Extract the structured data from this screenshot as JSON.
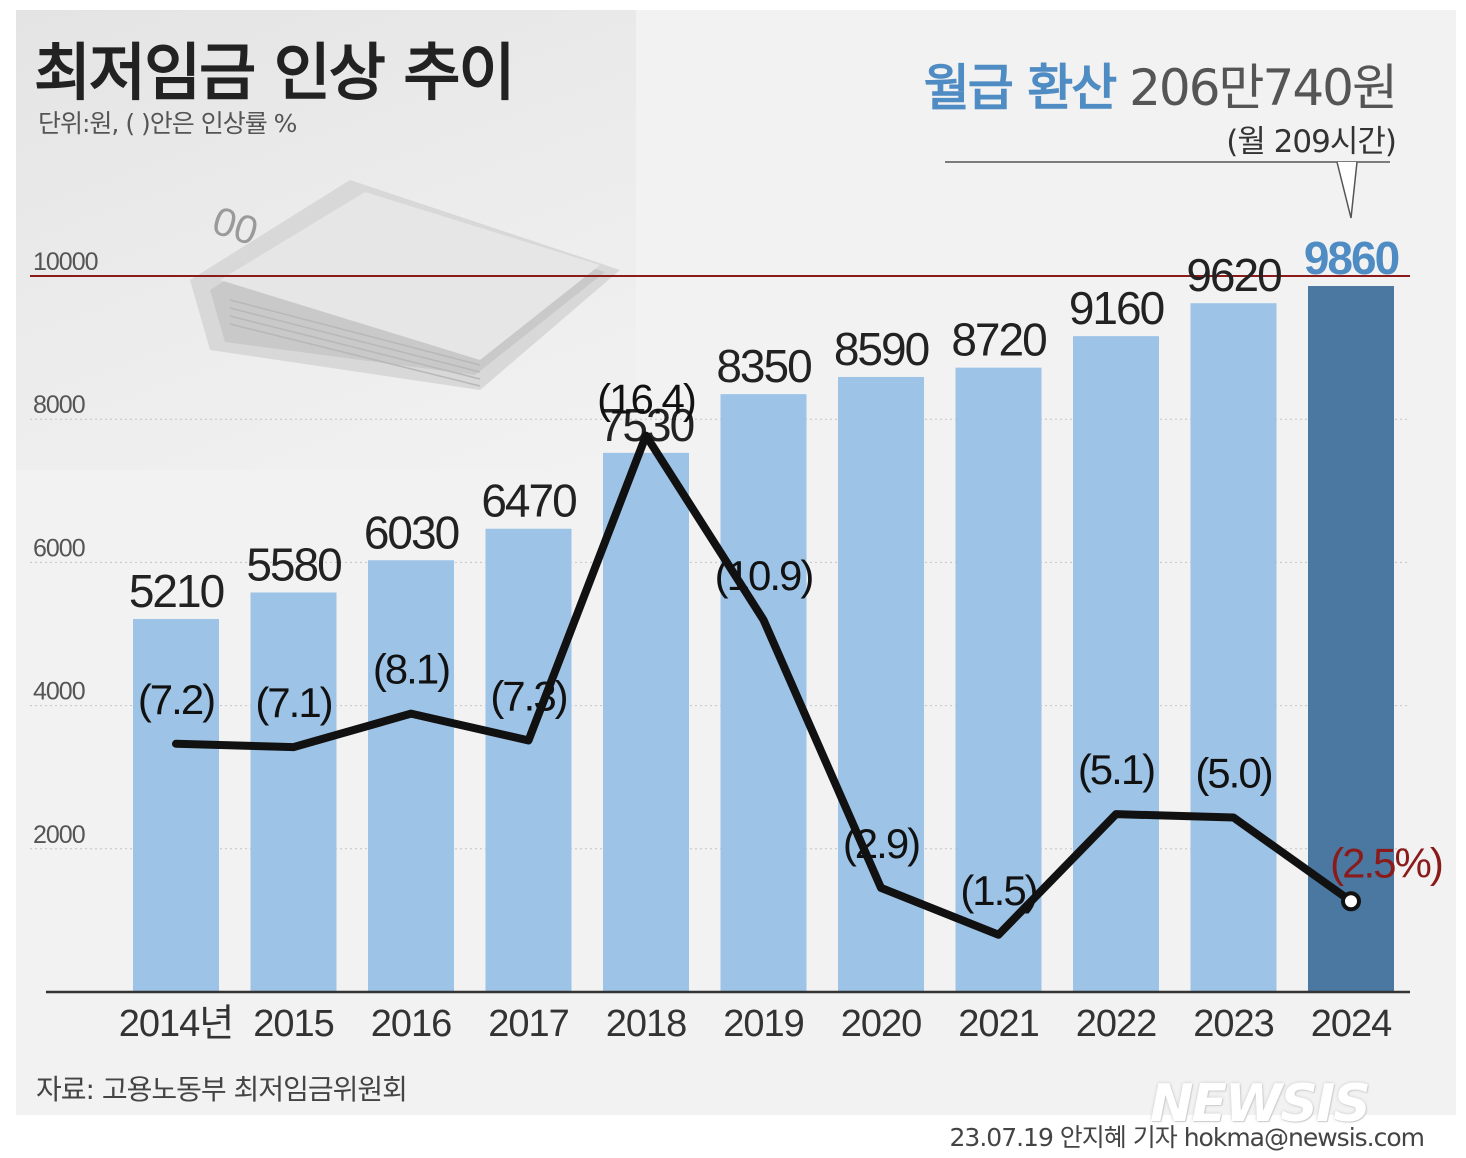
{
  "header": {
    "title": "최저임금 인상 추이",
    "unit_note": "단위:원, ( )안은 인상률 %",
    "monthly_label": "월급 환산",
    "monthly_value": "206만740원",
    "monthly_hours": "(월 209시간)"
  },
  "chart_data": {
    "type": "bar",
    "title": "최저임금 인상 추이",
    "categories": [
      "2014년",
      "2015",
      "2016",
      "2017",
      "2018",
      "2019",
      "2020",
      "2021",
      "2022",
      "2023",
      "2024"
    ],
    "series": [
      {
        "type": "bar",
        "values": [
          5210,
          5580,
          6030,
          6470,
          7530,
          8350,
          8590,
          8720,
          9160,
          9620,
          9860
        ]
      },
      {
        "type": "line",
        "values": [
          7.2,
          7.1,
          8.1,
          7.3,
          16.4,
          10.9,
          2.9,
          1.5,
          5.1,
          5.0,
          2.5
        ]
      }
    ],
    "bar_labels": [
      "5210",
      "5580",
      "6030",
      "6470",
      "7530",
      "8350",
      "8590",
      "8720",
      "9160",
      "9620",
      "9860"
    ],
    "rate_labels": [
      "(7.2)",
      "(7.1)",
      "(8.1)",
      "(7.3)",
      "(16.4)",
      "(10.9)",
      "(2.9)",
      "(1.5)",
      "(5.1)",
      "(5.0)",
      "(2.5%)"
    ],
    "yticks": [
      "2000",
      "4000",
      "6000",
      "8000",
      "10000"
    ],
    "ylim": [
      0,
      10000
    ],
    "rate_lim": [
      0,
      20
    ],
    "grid": true,
    "legend": "none",
    "colors": {
      "bar": "#9dc3e6",
      "highlight_bar": "#4a78a0",
      "highlight_label": "#4f8cc4",
      "line": "#111111",
      "reference_line": "#8b1a1a",
      "last_rate_label": "#8b1a1a"
    }
  },
  "footer": {
    "source": "자료: 고용노동부 최저임금위원회",
    "logo": "NEWSIS",
    "byline": "23.07.19 안지혜 기자 hokma@newsis.com"
  }
}
